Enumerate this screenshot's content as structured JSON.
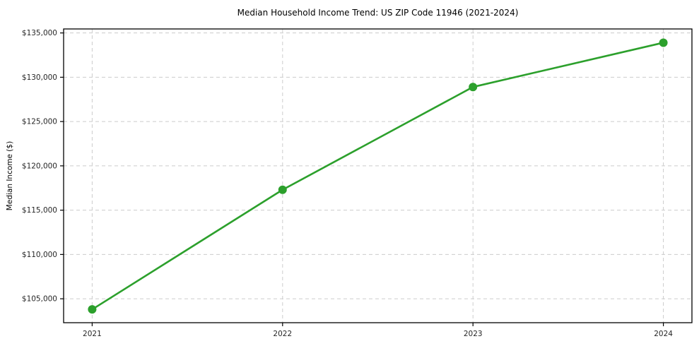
{
  "chart_data": {
    "type": "line",
    "title": "Median Household Income Trend: US ZIP Code 11946 (2021-2024)",
    "xlabel": "",
    "ylabel": "Median Income ($)",
    "x": [
      2021,
      2022,
      2023,
      2024
    ],
    "values": [
      103800,
      117300,
      128900,
      133900
    ],
    "xlim": [
      2020.85,
      2024.15
    ],
    "ylim": [
      102300,
      135450
    ],
    "xticks": [
      2021,
      2022,
      2023,
      2024
    ],
    "xtick_labels": [
      "2021",
      "2022",
      "2023",
      "2024"
    ],
    "yticks": [
      105000,
      110000,
      115000,
      120000,
      125000,
      130000,
      135000
    ],
    "ytick_labels": [
      "$105,000",
      "$110,000",
      "$115,000",
      "$120,000",
      "$125,000",
      "$130,000",
      "$135,000"
    ],
    "grid": true,
    "grid_style": "dashed",
    "legend": false,
    "line_color": "#2ca02c",
    "marker_color": "#2ca02c",
    "grid_color": "#cccccc",
    "axis_color": "#000000",
    "text_color": "#262626",
    "background_color": "#ffffff"
  }
}
